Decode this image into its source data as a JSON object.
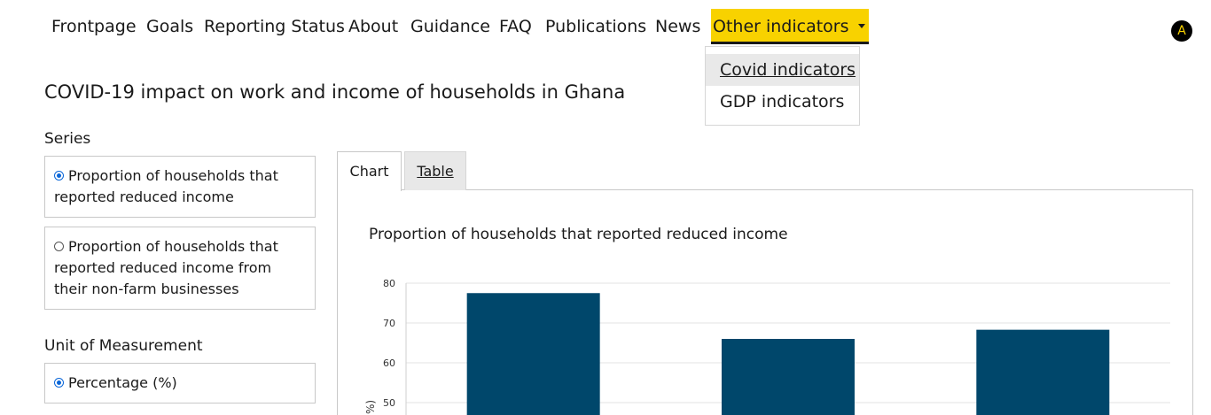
{
  "nav": {
    "items": [
      "Frontpage",
      "Goals",
      "Reporting Status",
      "About",
      "Guidance",
      "FAQ",
      "Publications",
      "News"
    ],
    "active_label": "Other indicators",
    "avatar_letter": "A"
  },
  "dropdown": {
    "items": [
      "Covid indicators",
      "GDP indicators"
    ]
  },
  "page": {
    "title": "COVID-19 impact on work and income of households in Ghana"
  },
  "filters": {
    "series_label": "Series",
    "series_options": [
      "Proportion of households that reported reduced income",
      "Proportion of households that reported reduced income from their non-farm businesses"
    ],
    "series_selected_index": 0,
    "unit_label": "Unit of Measurement",
    "unit_option": "Percentage (%)"
  },
  "tabs": {
    "chart": "Chart",
    "table": "Table"
  },
  "chart_data": {
    "type": "bar",
    "title": "Proportion of households that reported reduced income",
    "ylabel": "%)",
    "y_ticks": [
      50,
      60,
      70,
      80
    ],
    "ylim": [
      0,
      80
    ],
    "values": [
      77.5,
      66,
      68.3
    ],
    "bar_color": "#00476b",
    "grid": true
  },
  "colors": {
    "accent": "#f8d200",
    "bar": "#00476b",
    "radio": "#0a66d8"
  }
}
